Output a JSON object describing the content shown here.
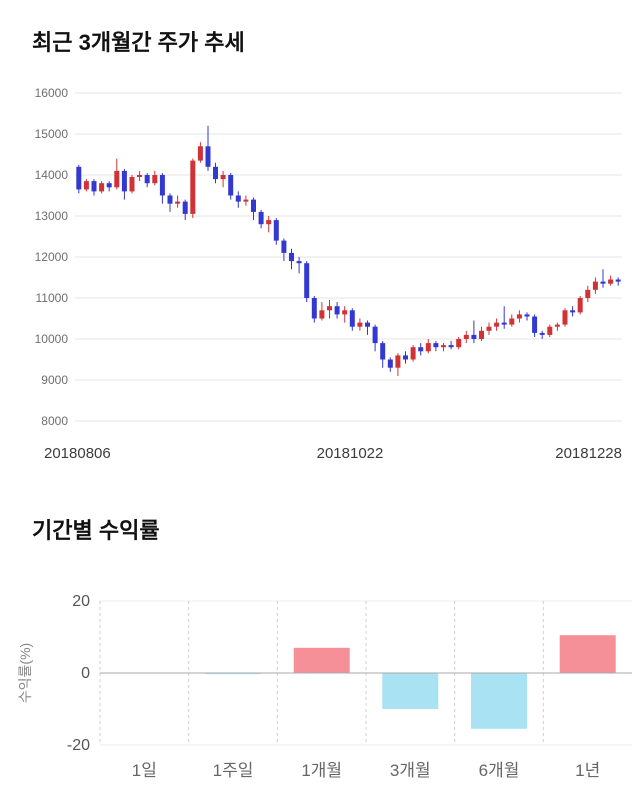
{
  "colors": {
    "candle_up": "#cf3338",
    "candle_down": "#3338cf",
    "bar_positive": "#f59098",
    "bar_negative": "#a9e2f3",
    "grid_line": "#e6e6e6",
    "zero_line": "#aaaaaa",
    "dashed_grid": "#cfcfcf"
  },
  "chart_data": [
    {
      "type": "candlestick",
      "title": "최근 3개월간 주가 추세",
      "x_labels": [
        "20180806",
        "20181022",
        "20181228"
      ],
      "y_ticks": [
        8000,
        9000,
        10000,
        11000,
        12000,
        13000,
        14000,
        15000,
        16000
      ],
      "ylim": [
        8000,
        16000
      ],
      "columns": [
        "open",
        "high",
        "low",
        "close"
      ],
      "candles": [
        [
          14200,
          14250,
          13550,
          13650
        ],
        [
          13650,
          13900,
          13600,
          13850
        ],
        [
          13850,
          13900,
          13500,
          13600
        ],
        [
          13600,
          13850,
          13550,
          13800
        ],
        [
          13800,
          13850,
          13600,
          13700
        ],
        [
          13700,
          14400,
          13650,
          14100
        ],
        [
          14100,
          14150,
          13400,
          13600
        ],
        [
          13600,
          14000,
          13550,
          13950
        ],
        [
          13950,
          14100,
          13850,
          14000
        ],
        [
          14000,
          14050,
          13700,
          13800
        ],
        [
          13800,
          14100,
          13750,
          14000
        ],
        [
          14000,
          14050,
          13300,
          13500
        ],
        [
          13500,
          13550,
          13100,
          13300
        ],
        [
          13300,
          13500,
          13200,
          13350
        ],
        [
          13350,
          13400,
          12900,
          13050
        ],
        [
          13050,
          14400,
          12950,
          14350
        ],
        [
          14350,
          14800,
          14300,
          14700
        ],
        [
          14700,
          15200,
          14100,
          14200
        ],
        [
          14200,
          14300,
          13800,
          13900
        ],
        [
          13900,
          14100,
          13700,
          14000
        ],
        [
          14000,
          14050,
          13400,
          13500
        ],
        [
          13500,
          13600,
          13200,
          13350
        ],
        [
          13350,
          13500,
          13250,
          13400
        ],
        [
          13400,
          13450,
          12900,
          13100
        ],
        [
          13100,
          13150,
          12700,
          12800
        ],
        [
          12800,
          13000,
          12600,
          12900
        ],
        [
          12900,
          12950,
          12300,
          12400
        ],
        [
          12400,
          12450,
          11900,
          12100
        ],
        [
          12100,
          12200,
          11700,
          11900
        ],
        [
          11900,
          12000,
          11600,
          11850
        ],
        [
          11850,
          11900,
          10900,
          11000
        ],
        [
          11000,
          11050,
          10400,
          10500
        ],
        [
          10500,
          10900,
          10450,
          10700
        ],
        [
          10700,
          10950,
          10500,
          10800
        ],
        [
          10800,
          10900,
          10500,
          10600
        ],
        [
          10600,
          10800,
          10400,
          10700
        ],
        [
          10700,
          10750,
          10200,
          10300
        ],
        [
          10300,
          10500,
          10200,
          10400
        ],
        [
          10400,
          10450,
          10100,
          10300
        ],
        [
          10300,
          10350,
          9700,
          9900
        ],
        [
          9900,
          9950,
          9300,
          9500
        ],
        [
          9500,
          9550,
          9200,
          9300
        ],
        [
          9300,
          9650,
          9100,
          9600
        ],
        [
          9600,
          9700,
          9400,
          9500
        ],
        [
          9500,
          9850,
          9450,
          9800
        ],
        [
          9800,
          9900,
          9600,
          9700
        ],
        [
          9700,
          10000,
          9650,
          9900
        ],
        [
          9900,
          9950,
          9700,
          9800
        ],
        [
          9800,
          9900,
          9700,
          9850
        ],
        [
          9850,
          9950,
          9750,
          9800
        ],
        [
          9800,
          10050,
          9750,
          10000
        ],
        [
          10000,
          10200,
          9900,
          10100
        ],
        [
          10100,
          10450,
          9900,
          10000
        ],
        [
          10000,
          10300,
          9950,
          10200
        ],
        [
          10200,
          10400,
          10100,
          10300
        ],
        [
          10300,
          10500,
          10200,
          10400
        ],
        [
          10400,
          10800,
          10250,
          10350
        ],
        [
          10350,
          10600,
          10300,
          10500
        ],
        [
          10500,
          10700,
          10400,
          10600
        ],
        [
          10600,
          10650,
          10450,
          10550
        ],
        [
          10550,
          10600,
          10050,
          10150
        ],
        [
          10150,
          10200,
          10000,
          10100
        ],
        [
          10100,
          10350,
          10050,
          10300
        ],
        [
          10300,
          10400,
          10200,
          10350
        ],
        [
          10350,
          10750,
          10300,
          10700
        ],
        [
          10700,
          10800,
          10550,
          10650
        ],
        [
          10650,
          11050,
          10600,
          11000
        ],
        [
          11000,
          11300,
          10900,
          11200
        ],
        [
          11200,
          11500,
          11100,
          11400
        ],
        [
          11400,
          11700,
          11250,
          11350
        ],
        [
          11350,
          11550,
          11300,
          11450
        ],
        [
          11450,
          11500,
          11300,
          11400
        ]
      ]
    },
    {
      "type": "bar",
      "title": "기간별 수익률",
      "ylabel": "수익률(%)",
      "categories": [
        "1일",
        "1주일",
        "1개월",
        "3개월",
        "6개월",
        "1년"
      ],
      "values": [
        0,
        -0.3,
        7,
        -10,
        -15.5,
        10.5
      ],
      "y_ticks": [
        20,
        0,
        -20
      ],
      "ylim": [
        -20,
        20
      ],
      "grid": "dashed-vertical",
      "legend": "none"
    }
  ]
}
